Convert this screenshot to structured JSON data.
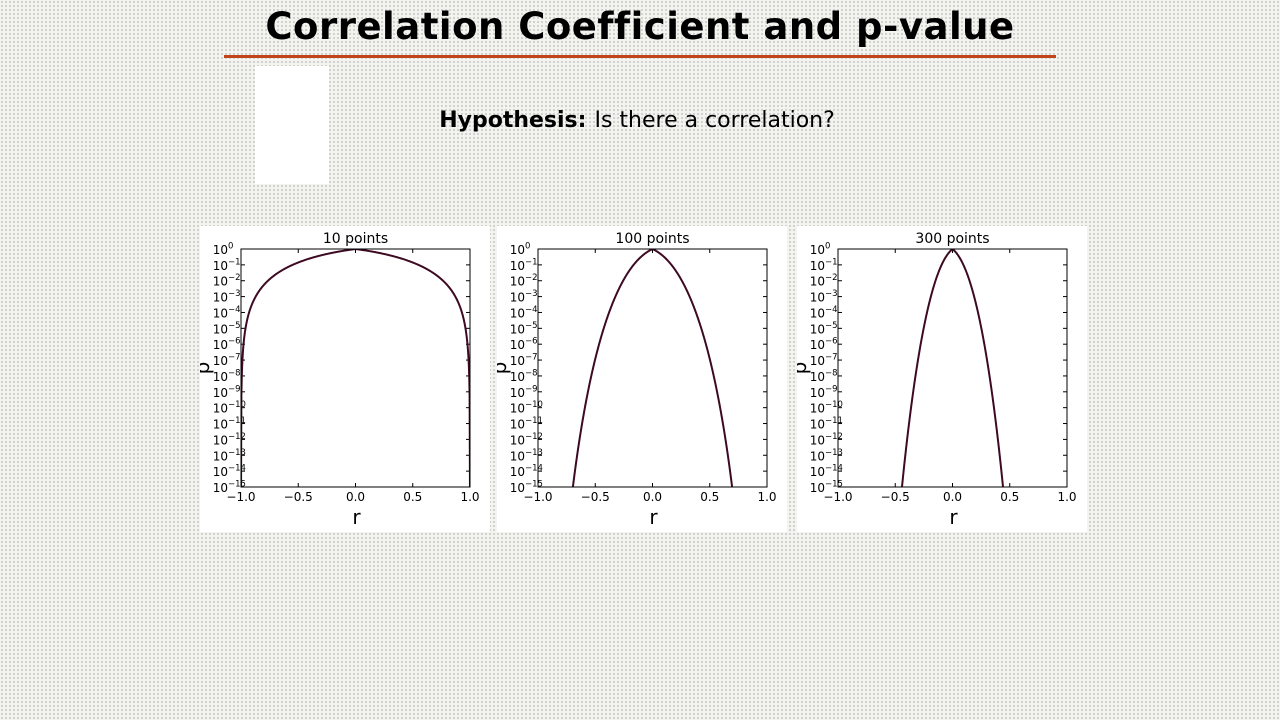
{
  "slide": {
    "title": "Correlation Coefficient and p-value",
    "hypothesis_label": "Hypothesis:",
    "hypothesis_text": "Is there a correlation?"
  },
  "colors": {
    "title_rule": "#c1441a",
    "curve": "#3d0a22"
  },
  "chart_data": [
    {
      "type": "line",
      "title": "10 points",
      "xlabel": "r",
      "ylabel": "p",
      "n": 10,
      "xlim": [
        -1.0,
        1.0
      ],
      "ylim": [
        "1e-15",
        "1e0"
      ],
      "y_scale": "log",
      "x_ticks": [
        "−1.0",
        "−0.5",
        "0.0",
        "0.5",
        "1.0"
      ],
      "y_ticks": [
        "10^0",
        "10^-1",
        "10^-2",
        "10^-3",
        "10^-4",
        "10^-5",
        "10^-6",
        "10^-7",
        "10^-8",
        "10^-9",
        "10^-10",
        "10^-11",
        "10^-12",
        "10^-13",
        "10^-14",
        "10^-15"
      ],
      "series": [
        {
          "x": [
            -0.99,
            -0.98,
            -0.95,
            -0.9,
            -0.8,
            -0.6,
            -0.4,
            -0.2,
            0.0,
            0.2,
            0.4,
            0.6,
            0.8,
            0.9,
            0.95,
            0.98,
            0.99
          ],
          "y": [
            3.6e-08,
            6.7e-07,
            2.5e-05,
            0.00039,
            0.0055,
            0.067,
            0.25,
            0.58,
            1.0,
            0.58,
            0.25,
            0.067,
            0.0055,
            0.00039,
            2.5e-05,
            6.7e-07,
            3.6e-08
          ]
        }
      ]
    },
    {
      "type": "line",
      "title": "100 points",
      "xlabel": "r",
      "ylabel": "p",
      "n": 100,
      "xlim": [
        -1.0,
        1.0
      ],
      "ylim": [
        "1e-15",
        "1e0"
      ],
      "y_scale": "log",
      "x_ticks": [
        "−1.0",
        "−0.5",
        "0.0",
        "0.5",
        "1.0"
      ],
      "y_ticks": [
        "10^0",
        "10^-1",
        "10^-2",
        "10^-3",
        "10^-4",
        "10^-5",
        "10^-6",
        "10^-7",
        "10^-8",
        "10^-9",
        "10^-10",
        "10^-11",
        "10^-12",
        "10^-13",
        "10^-14",
        "10^-15"
      ],
      "series": [
        {
          "x": [
            -0.7,
            -0.6,
            -0.5,
            -0.4,
            -0.3,
            -0.2,
            -0.1,
            0.0,
            0.1,
            0.2,
            0.3,
            0.4,
            0.5,
            0.6,
            0.7
          ],
          "y": [
            4.9e-16,
            4.3e-11,
            1.2e-07,
            3.7e-05,
            0.0024,
            0.046,
            0.32,
            1.0,
            0.32,
            0.046,
            0.0024,
            3.7e-05,
            1.2e-07,
            4.3e-11,
            4.9e-16
          ]
        }
      ]
    },
    {
      "type": "line",
      "title": "300 points",
      "xlabel": "r",
      "ylabel": "p",
      "n": 300,
      "xlim": [
        -1.0,
        1.0
      ],
      "ylim": [
        "1e-15",
        "1e0"
      ],
      "y_scale": "log",
      "x_ticks": [
        "−1.0",
        "−0.5",
        "0.0",
        "0.5",
        "1.0"
      ],
      "y_ticks": [
        "10^0",
        "10^-1",
        "10^-2",
        "10^-3",
        "10^-4",
        "10^-5",
        "10^-6",
        "10^-7",
        "10^-8",
        "10^-9",
        "10^-10",
        "10^-11",
        "10^-12",
        "10^-13",
        "10^-14",
        "10^-15"
      ],
      "series": [
        {
          "x": [
            -0.44,
            -0.4,
            -0.3,
            -0.2,
            -0.1,
            0.0,
            0.1,
            0.2,
            0.3,
            0.4,
            0.44
          ],
          "y": [
            1.2e-15,
            5.4e-13,
            1.1e-07,
            0.00048,
            0.084,
            1.0,
            0.084,
            0.00048,
            1.1e-07,
            5.4e-13,
            1.2e-15
          ]
        }
      ]
    }
  ]
}
